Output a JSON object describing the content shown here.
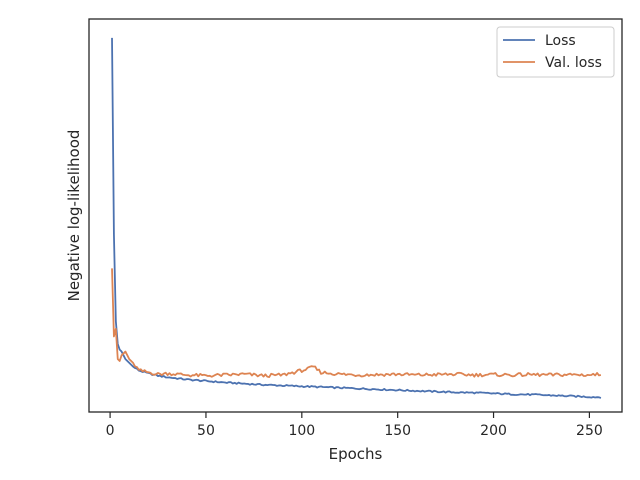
{
  "chart_data": {
    "type": "line",
    "xlabel": "Epochs",
    "ylabel": "Negative log-likelihood",
    "xlim": [
      -11,
      267
    ],
    "ylim": [
      -0.02,
      1.02
    ],
    "xticks": [
      0,
      50,
      100,
      150,
      200,
      250
    ],
    "xtick_labels": [
      "0",
      "50",
      "100",
      "150",
      "200",
      "250"
    ],
    "yticks_shown": false,
    "grid": false,
    "legend_position": "top-right",
    "series": [
      {
        "name": "Loss",
        "color": "#4c72b0",
        "x": [
          1,
          2,
          3,
          4,
          5,
          6,
          8,
          10,
          12,
          15,
          20,
          25,
          30,
          40,
          50,
          60,
          70,
          80,
          90,
          100,
          110,
          120,
          130,
          140,
          150,
          160,
          170,
          180,
          190,
          200,
          210,
          220,
          230,
          240,
          250,
          256
        ],
        "y": [
          0.97,
          0.45,
          0.22,
          0.16,
          0.145,
          0.14,
          0.12,
          0.11,
          0.1,
          0.09,
          0.082,
          0.076,
          0.072,
          0.066,
          0.062,
          0.058,
          0.055,
          0.052,
          0.05,
          0.048,
          0.046,
          0.044,
          0.042,
          0.04,
          0.038,
          0.036,
          0.034,
          0.032,
          0.031,
          0.029,
          0.027,
          0.026,
          0.024,
          0.022,
          0.02,
          0.019
        ]
      },
      {
        "name": "Val. loss",
        "color": "#dd8452",
        "x": [
          1,
          2,
          3,
          4,
          5,
          6,
          8,
          10,
          12,
          15,
          20,
          25,
          30,
          40,
          50,
          60,
          70,
          80,
          90,
          100,
          104,
          106,
          110,
          120,
          130,
          140,
          150,
          160,
          170,
          180,
          190,
          200,
          210,
          220,
          230,
          240,
          250,
          256
        ],
        "y": [
          0.36,
          0.18,
          0.2,
          0.12,
          0.115,
          0.13,
          0.14,
          0.12,
          0.11,
          0.09,
          0.085,
          0.08,
          0.082,
          0.078,
          0.076,
          0.078,
          0.08,
          0.076,
          0.078,
          0.09,
          0.095,
          0.1,
          0.085,
          0.08,
          0.078,
          0.079,
          0.08,
          0.078,
          0.079,
          0.08,
          0.078,
          0.079,
          0.078,
          0.079,
          0.078,
          0.079,
          0.078,
          0.08
        ]
      }
    ]
  }
}
